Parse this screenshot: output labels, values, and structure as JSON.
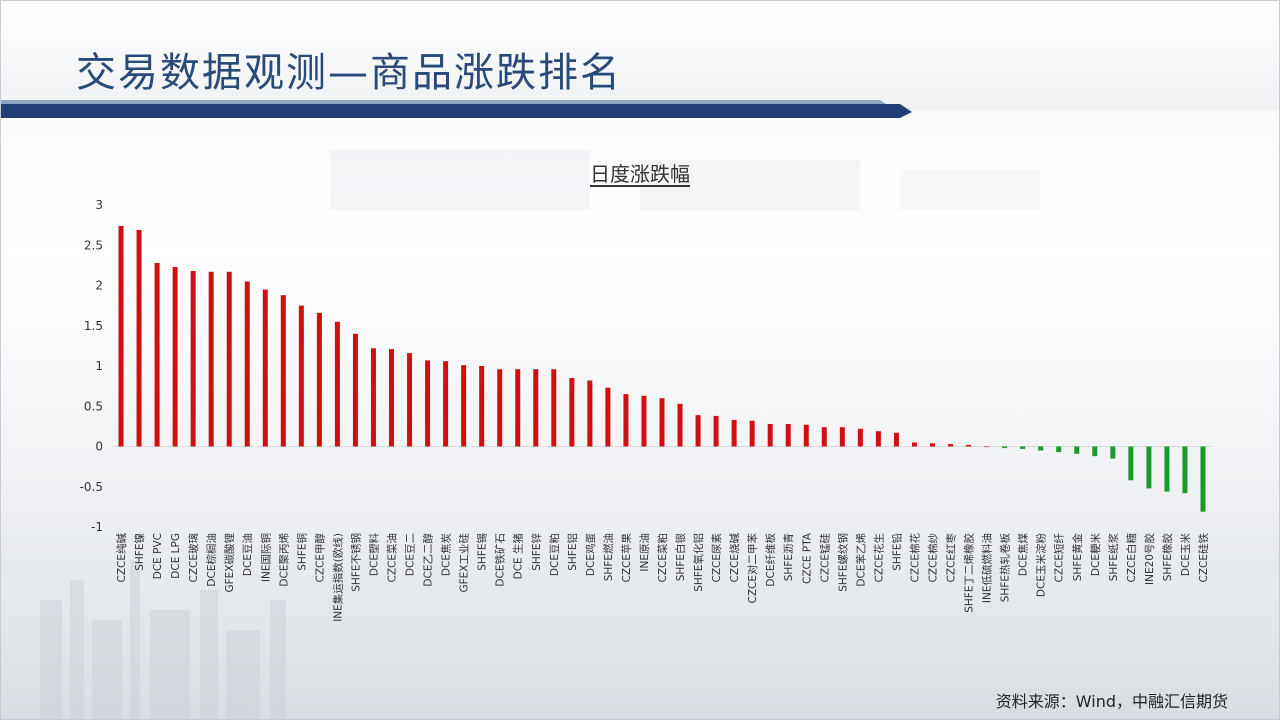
{
  "page": {
    "title": "交易数据观测—商品涨跌排名"
  },
  "source": "资料来源：Wind，中融汇信期货",
  "colors": {
    "up": "#d01010",
    "down": "#1a9a2a",
    "title": "#2a4a7a",
    "accent": "#1f3f75"
  },
  "chart_data": {
    "type": "bar",
    "title": "日度涨跌幅",
    "xlabel": "",
    "ylabel": "",
    "ylim": [
      -1,
      3
    ],
    "yticks": [
      3,
      2.5,
      2,
      1.5,
      1,
      0.5,
      0,
      -0.5,
      -1
    ],
    "grid": false,
    "legend": "none",
    "categories": [
      "CZCE纯碱",
      "SHFE镍",
      "DCE PVC",
      "DCE LPG",
      "CZCE玻璃",
      "DCE棕榈油",
      "GFEX碳酸锂",
      "DCE豆油",
      "INE国际铜",
      "DCE聚丙烯",
      "SHFE铜",
      "CZCE甲醇",
      "INE集运指数(欧线)",
      "SHFE不锈钢",
      "DCE塑料",
      "CZCE菜油",
      "DCE豆二",
      "DCE乙二醇",
      "DCE焦炭",
      "GFEX工业硅",
      "SHFE锡",
      "DCE铁矿石",
      "DCE 生猪",
      "SHFE锌",
      "DCE豆粕",
      "SHFE铝",
      "DCE鸡蛋",
      "SHFE燃油",
      "CZCE苹果",
      "INE原油",
      "CZCE菜粕",
      "SHFE白银",
      "SHFE氧化铝",
      "CZCE尿素",
      "CZCE烧碱",
      "CZCE对二甲苯",
      "DCE纤维板",
      "SHFE沥青",
      "CZCE PTA",
      "CZCE锰硅",
      "SHFE螺纹钢",
      "DCE苯乙烯",
      "CZCE花生",
      "SHFE铅",
      "CZCE棉花",
      "CZCE棉纱",
      "CZCE红枣",
      "SHFE丁二烯橡胶",
      "INE低硫燃料油",
      "SHFE热轧卷板",
      "DCE焦煤",
      "DCE玉米淀粉",
      "CZCE短纤",
      "SHFE黄金",
      "DCE粳米",
      "SHFE纸浆",
      "CZCE白糖",
      "INE20号胶",
      "SHFE橡胶",
      "DCE玉米",
      "CZCE硅铁"
    ],
    "values": [
      2.74,
      2.69,
      2.28,
      2.23,
      2.18,
      2.17,
      2.17,
      2.05,
      1.95,
      1.88,
      1.75,
      1.66,
      1.55,
      1.4,
      1.22,
      1.21,
      1.16,
      1.07,
      1.06,
      1.01,
      1.0,
      0.96,
      0.96,
      0.96,
      0.96,
      0.85,
      0.82,
      0.73,
      0.65,
      0.63,
      0.6,
      0.53,
      0.39,
      0.38,
      0.33,
      0.32,
      0.28,
      0.28,
      0.27,
      0.24,
      0.24,
      0.22,
      0.19,
      0.17,
      0.05,
      0.04,
      0.03,
      0.02,
      0.0,
      -0.02,
      -0.03,
      -0.05,
      -0.07,
      -0.09,
      -0.12,
      -0.15,
      -0.42,
      -0.52,
      -0.56,
      -0.58,
      -0.81
    ]
  }
}
